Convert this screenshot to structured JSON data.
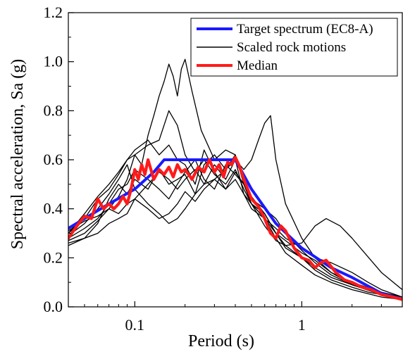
{
  "chart_data": {
    "type": "line",
    "xlabel": "Period (s)",
    "ylabel": "Spectral acceleration, Sa (g)",
    "x_scale": "log",
    "xlim": [
      0.04,
      4.0
    ],
    "ylim": [
      0.0,
      1.2
    ],
    "x_ticks": [
      0.1,
      1
    ],
    "x_tick_labels": [
      "0.1",
      "1"
    ],
    "y_ticks": [
      0.0,
      0.2,
      0.4,
      0.6,
      0.8,
      1.0,
      1.2
    ],
    "y_tick_labels": [
      "0.0",
      "0.2",
      "0.4",
      "0.6",
      "0.8",
      "1.0",
      "1.2"
    ],
    "grid": false,
    "legend_position": "top-right",
    "legend": [
      {
        "label": "Target spectrum (EC8-A)",
        "color": "#1a1aff",
        "style": "thick"
      },
      {
        "label": "Scaled rock motions",
        "color": "#000000",
        "style": "thin"
      },
      {
        "label": "Median",
        "color": "#ff1a1a",
        "style": "thick"
      }
    ],
    "series": [
      {
        "name": "Target spectrum (EC8-A)",
        "color": "#1a1aff",
        "role": "target",
        "x": [
          0.04,
          0.05,
          0.07,
          0.1,
          0.13,
          0.15,
          0.2,
          0.3,
          0.4,
          0.5,
          0.7,
          1.0,
          1.5,
          2.0,
          3.0,
          4.0
        ],
        "y": [
          0.32,
          0.36,
          0.42,
          0.48,
          0.55,
          0.6,
          0.6,
          0.6,
          0.6,
          0.48,
          0.34,
          0.24,
          0.16,
          0.12,
          0.055,
          0.031
        ]
      },
      {
        "name": "Median",
        "color": "#ff1a1a",
        "role": "median",
        "x": [
          0.04,
          0.045,
          0.05,
          0.055,
          0.06,
          0.065,
          0.07,
          0.075,
          0.08,
          0.085,
          0.09,
          0.095,
          0.1,
          0.105,
          0.11,
          0.115,
          0.12,
          0.13,
          0.14,
          0.15,
          0.16,
          0.17,
          0.18,
          0.19,
          0.2,
          0.22,
          0.24,
          0.26,
          0.28,
          0.3,
          0.32,
          0.34,
          0.36,
          0.38,
          0.4,
          0.42,
          0.45,
          0.5,
          0.55,
          0.6,
          0.65,
          0.7,
          0.75,
          0.8,
          0.9,
          1.0,
          1.1,
          1.2,
          1.3,
          1.4,
          1.6,
          1.8,
          2.0,
          2.3,
          2.6,
          3.0,
          3.5,
          4.0
        ],
        "y": [
          0.28,
          0.33,
          0.37,
          0.36,
          0.44,
          0.4,
          0.42,
          0.4,
          0.42,
          0.45,
          0.42,
          0.48,
          0.56,
          0.52,
          0.58,
          0.54,
          0.6,
          0.52,
          0.56,
          0.54,
          0.57,
          0.53,
          0.58,
          0.55,
          0.56,
          0.52,
          0.57,
          0.55,
          0.6,
          0.55,
          0.58,
          0.53,
          0.59,
          0.58,
          0.61,
          0.58,
          0.52,
          0.44,
          0.41,
          0.36,
          0.3,
          0.28,
          0.33,
          0.31,
          0.24,
          0.2,
          0.19,
          0.16,
          0.18,
          0.19,
          0.14,
          0.11,
          0.1,
          0.08,
          0.07,
          0.05,
          0.04,
          0.03
        ]
      },
      {
        "name": "",
        "color": "#000000",
        "role": "record",
        "x": [
          0.04,
          0.05,
          0.06,
          0.07,
          0.08,
          0.09,
          0.1,
          0.11,
          0.12,
          0.13,
          0.14,
          0.15,
          0.16,
          0.17,
          0.18,
          0.19,
          0.2,
          0.22,
          0.25,
          0.3,
          0.35,
          0.4,
          0.45,
          0.5,
          0.6,
          0.7,
          0.8,
          1.0,
          1.2,
          1.5,
          2.0,
          2.5,
          3.0,
          4.0
        ],
        "y": [
          0.3,
          0.38,
          0.45,
          0.5,
          0.55,
          0.6,
          0.62,
          0.58,
          0.7,
          0.78,
          0.86,
          0.92,
          0.99,
          0.94,
          0.86,
          0.97,
          1.01,
          0.88,
          0.72,
          0.6,
          0.64,
          0.62,
          0.5,
          0.42,
          0.38,
          0.3,
          0.24,
          0.2,
          0.15,
          0.11,
          0.08,
          0.06,
          0.05,
          0.03
        ]
      },
      {
        "name": "",
        "color": "#000000",
        "role": "record",
        "x": [
          0.04,
          0.05,
          0.06,
          0.07,
          0.08,
          0.09,
          0.1,
          0.12,
          0.14,
          0.16,
          0.18,
          0.2,
          0.23,
          0.26,
          0.3,
          0.35,
          0.4,
          0.45,
          0.5,
          0.6,
          0.7,
          0.8,
          1.0,
          1.2,
          1.5,
          2.0,
          3.0,
          4.0
        ],
        "y": [
          0.27,
          0.3,
          0.35,
          0.4,
          0.45,
          0.52,
          0.62,
          0.66,
          0.68,
          0.8,
          0.74,
          0.62,
          0.55,
          0.6,
          0.54,
          0.5,
          0.56,
          0.48,
          0.42,
          0.36,
          0.3,
          0.27,
          0.22,
          0.19,
          0.14,
          0.1,
          0.06,
          0.04
        ]
      },
      {
        "name": "",
        "color": "#000000",
        "role": "record",
        "x": [
          0.04,
          0.05,
          0.06,
          0.07,
          0.08,
          0.09,
          0.1,
          0.12,
          0.14,
          0.16,
          0.18,
          0.2,
          0.23,
          0.26,
          0.3,
          0.35,
          0.4,
          0.45,
          0.5,
          0.6,
          0.7,
          0.8,
          1.0,
          1.2,
          1.4,
          1.7,
          2.0,
          3.0,
          4.0
        ],
        "y": [
          0.26,
          0.28,
          0.34,
          0.44,
          0.5,
          0.46,
          0.52,
          0.48,
          0.56,
          0.5,
          0.52,
          0.54,
          0.46,
          0.58,
          0.62,
          0.56,
          0.6,
          0.46,
          0.42,
          0.33,
          0.27,
          0.25,
          0.26,
          0.33,
          0.36,
          0.33,
          0.28,
          0.14,
          0.07
        ]
      },
      {
        "name": "",
        "color": "#000000",
        "role": "record",
        "x": [
          0.04,
          0.05,
          0.06,
          0.07,
          0.08,
          0.09,
          0.1,
          0.12,
          0.14,
          0.16,
          0.18,
          0.2,
          0.23,
          0.26,
          0.3,
          0.35,
          0.4,
          0.45,
          0.5,
          0.55,
          0.6,
          0.65,
          0.7,
          0.8,
          1.0,
          1.2,
          1.5,
          2.0,
          3.0,
          4.0
        ],
        "y": [
          0.25,
          0.28,
          0.3,
          0.34,
          0.36,
          0.38,
          0.44,
          0.5,
          0.55,
          0.52,
          0.48,
          0.52,
          0.56,
          0.5,
          0.58,
          0.52,
          0.6,
          0.56,
          0.6,
          0.68,
          0.75,
          0.78,
          0.6,
          0.42,
          0.28,
          0.2,
          0.14,
          0.09,
          0.05,
          0.03
        ]
      },
      {
        "name": "",
        "color": "#000000",
        "role": "record",
        "x": [
          0.04,
          0.05,
          0.06,
          0.07,
          0.08,
          0.09,
          0.1,
          0.12,
          0.14,
          0.16,
          0.18,
          0.2,
          0.23,
          0.26,
          0.3,
          0.35,
          0.4,
          0.45,
          0.5,
          0.6,
          0.7,
          0.8,
          1.0,
          1.2,
          1.5,
          2.0,
          2.5,
          3.0,
          4.0
        ],
        "y": [
          0.3,
          0.36,
          0.44,
          0.48,
          0.54,
          0.6,
          0.64,
          0.68,
          0.62,
          0.66,
          0.6,
          0.58,
          0.5,
          0.64,
          0.55,
          0.48,
          0.52,
          0.46,
          0.4,
          0.36,
          0.32,
          0.28,
          0.24,
          0.2,
          0.18,
          0.14,
          0.1,
          0.07,
          0.04
        ]
      },
      {
        "name": "",
        "color": "#000000",
        "role": "record",
        "x": [
          0.04,
          0.05,
          0.06,
          0.07,
          0.08,
          0.09,
          0.1,
          0.12,
          0.14,
          0.16,
          0.18,
          0.2,
          0.23,
          0.26,
          0.3,
          0.35,
          0.4,
          0.45,
          0.5,
          0.6,
          0.7,
          0.8,
          1.0,
          1.2,
          1.5,
          2.0,
          3.0,
          4.0
        ],
        "y": [
          0.28,
          0.32,
          0.36,
          0.42,
          0.48,
          0.5,
          0.56,
          0.52,
          0.48,
          0.44,
          0.5,
          0.55,
          0.6,
          0.52,
          0.48,
          0.58,
          0.54,
          0.5,
          0.45,
          0.38,
          0.3,
          0.25,
          0.2,
          0.16,
          0.12,
          0.09,
          0.05,
          0.03
        ]
      },
      {
        "name": "",
        "color": "#000000",
        "role": "record",
        "x": [
          0.04,
          0.05,
          0.06,
          0.07,
          0.08,
          0.09,
          0.1,
          0.12,
          0.14,
          0.16,
          0.18,
          0.2,
          0.23,
          0.26,
          0.3,
          0.35,
          0.4,
          0.45,
          0.5,
          0.6,
          0.7,
          0.8,
          1.0,
          1.2,
          1.5,
          2.0,
          3.0,
          4.0
        ],
        "y": [
          0.29,
          0.34,
          0.4,
          0.46,
          0.52,
          0.58,
          0.48,
          0.42,
          0.38,
          0.34,
          0.36,
          0.4,
          0.46,
          0.5,
          0.52,
          0.48,
          0.55,
          0.5,
          0.42,
          0.36,
          0.28,
          0.22,
          0.17,
          0.13,
          0.1,
          0.07,
          0.04,
          0.03
        ]
      },
      {
        "name": "",
        "color": "#000000",
        "role": "record",
        "x": [
          0.04,
          0.05,
          0.06,
          0.07,
          0.08,
          0.09,
          0.1,
          0.12,
          0.14,
          0.16,
          0.18,
          0.2,
          0.23,
          0.26,
          0.3,
          0.35,
          0.4,
          0.45,
          0.5,
          0.6,
          0.7,
          0.8,
          1.0,
          1.2,
          1.5,
          2.0,
          3.0,
          4.0
        ],
        "y": [
          0.31,
          0.35,
          0.37,
          0.4,
          0.38,
          0.42,
          0.44,
          0.4,
          0.36,
          0.38,
          0.42,
          0.47,
          0.43,
          0.48,
          0.52,
          0.56,
          0.62,
          0.5,
          0.44,
          0.4,
          0.36,
          0.3,
          0.23,
          0.18,
          0.13,
          0.09,
          0.05,
          0.03
        ]
      }
    ]
  }
}
